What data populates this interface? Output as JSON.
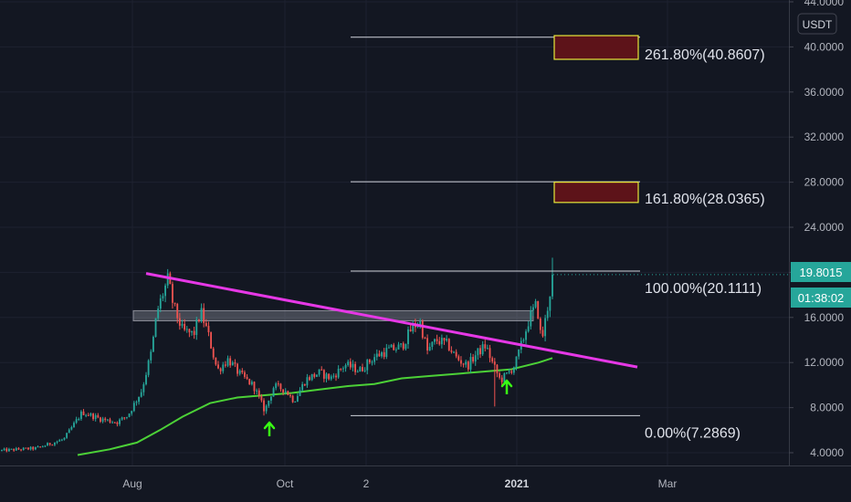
{
  "chart_data": {
    "type": "candlestick",
    "currency": "USDT",
    "y_axis": {
      "ylim": [
        4.0,
        44.0
      ],
      "ticks": [
        "4.0000",
        "8.0000",
        "12.0000",
        "16.0000",
        "20.0000",
        "24.0000",
        "28.0000",
        "32.0000",
        "36.0000",
        "40.0000",
        "44.0000"
      ]
    },
    "time_axis": {
      "ticks": [
        {
          "label": "Aug",
          "bold": false
        },
        {
          "label": "Oct",
          "bold": false
        },
        {
          "label": "2",
          "bold": false
        },
        {
          "label": "2021",
          "bold": true
        },
        {
          "label": "Mar",
          "bold": false
        }
      ]
    },
    "price": {
      "current": "19.8015",
      "countdown": "01:38:02",
      "color": "#26a69a"
    },
    "fib_levels": [
      {
        "label": "261.80%(40.8607)",
        "value": 40.8607
      },
      {
        "label": "161.80%(28.0365)",
        "value": 28.0365
      },
      {
        "label": "100.00%(20.1111)",
        "value": 20.1111
      },
      {
        "label": "0.00%(7.2869)",
        "value": 7.2869
      }
    ],
    "target_boxes": [
      {
        "low": 38.9,
        "high": 41.0,
        "fill": "#5d1319",
        "stroke": "#e8e83a"
      },
      {
        "low": 26.2,
        "high": 28.0,
        "fill": "#5d1319",
        "stroke": "#e8e83a"
      }
    ],
    "resistance_zone": {
      "low": 15.7,
      "high": 16.6
    },
    "trendline": {
      "from": 19.9,
      "to": 11.6,
      "color": "#e638e6"
    },
    "moving_average_color": "#4cd137",
    "arrows_color": "#39ff14",
    "colors": {
      "up": "#26a69a",
      "down": "#ef5350",
      "background": "#131722",
      "grid": "#1e2230"
    }
  }
}
